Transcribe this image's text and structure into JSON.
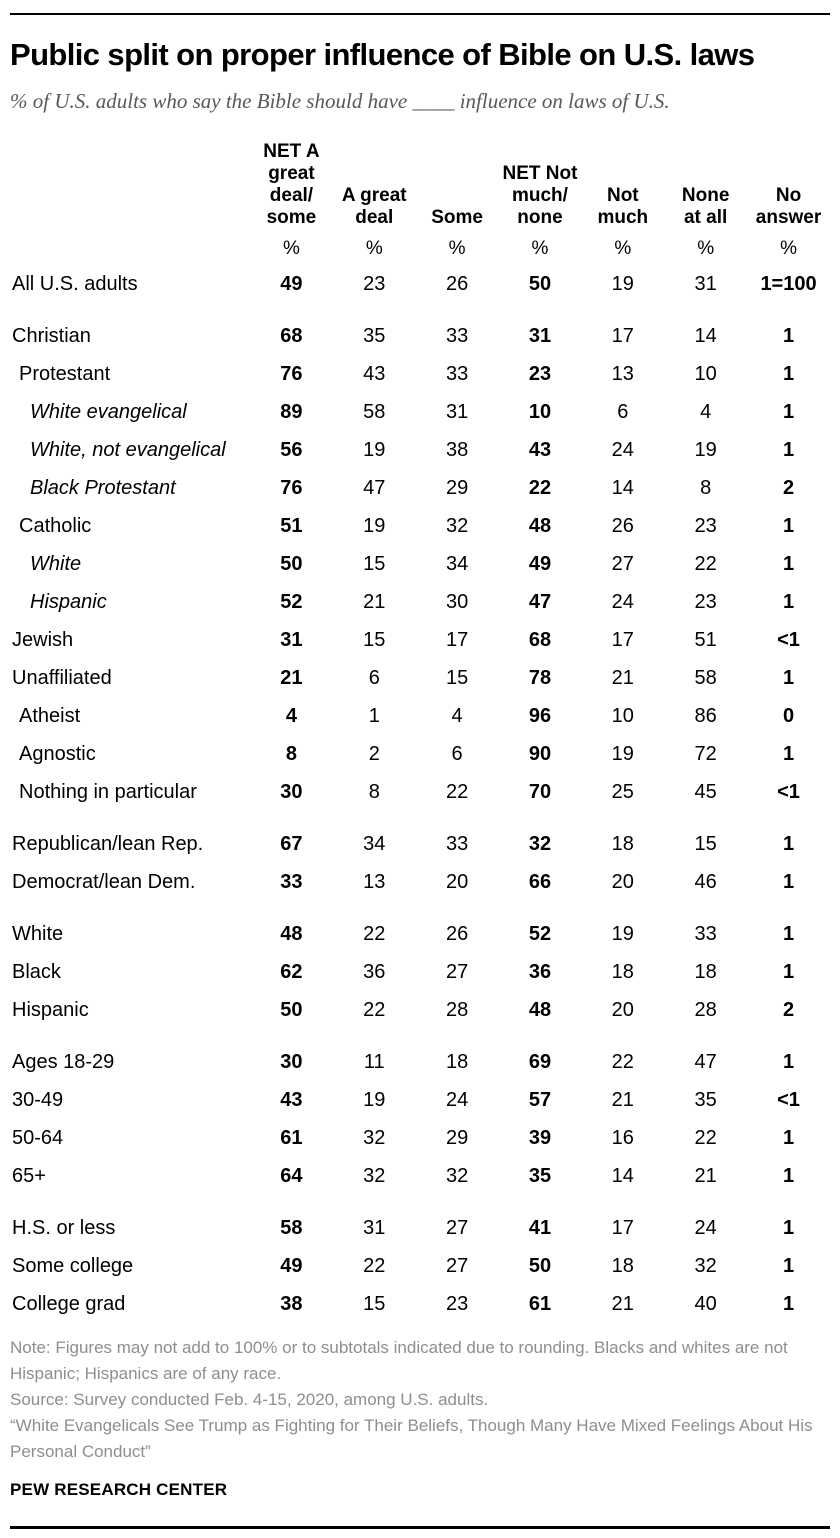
{
  "header": {
    "title": "Public split on proper influence of Bible on U.S. laws",
    "subtitle": "% of U.S. adults who say the Bible should have ____ influence on laws of U.S."
  },
  "chart_data": {
    "type": "table",
    "title": "Public split on proper influence of Bible on U.S. laws",
    "subtitle": "% of U.S. adults who say the Bible should have ____ influence on laws of U.S.",
    "unit": "%",
    "columns": [
      {
        "label": "NET A\ngreat\ndeal/\nsome",
        "bold": true
      },
      {
        "label": "A great\ndeal",
        "bold": false
      },
      {
        "label": "Some",
        "bold": false
      },
      {
        "label": "NET Not\nmuch/\nnone",
        "bold": true
      },
      {
        "label": "Not\nmuch",
        "bold": false
      },
      {
        "label": "None\nat all",
        "bold": false
      },
      {
        "label": "No\nanswer",
        "bold": true
      }
    ],
    "rows": [
      {
        "label": "All U.S. adults",
        "indent": 0,
        "italic": false,
        "group_start": false,
        "values": [
          "49",
          "23",
          "26",
          "50",
          "19",
          "31",
          "1=100"
        ]
      },
      {
        "label": "Christian",
        "indent": 0,
        "italic": false,
        "group_start": true,
        "values": [
          "68",
          "35",
          "33",
          "31",
          "17",
          "14",
          "1"
        ]
      },
      {
        "label": "Protestant",
        "indent": 1,
        "italic": false,
        "group_start": false,
        "values": [
          "76",
          "43",
          "33",
          "23",
          "13",
          "10",
          "1"
        ]
      },
      {
        "label": "White evangelical",
        "indent": 2,
        "italic": true,
        "group_start": false,
        "values": [
          "89",
          "58",
          "31",
          "10",
          "6",
          "4",
          "1"
        ]
      },
      {
        "label": "White, not evangelical",
        "indent": 2,
        "italic": true,
        "group_start": false,
        "values": [
          "56",
          "19",
          "38",
          "43",
          "24",
          "19",
          "1"
        ]
      },
      {
        "label": "Black Protestant",
        "indent": 2,
        "italic": true,
        "group_start": false,
        "values": [
          "76",
          "47",
          "29",
          "22",
          "14",
          "8",
          "2"
        ]
      },
      {
        "label": "Catholic",
        "indent": 1,
        "italic": false,
        "group_start": false,
        "values": [
          "51",
          "19",
          "32",
          "48",
          "26",
          "23",
          "1"
        ]
      },
      {
        "label": "White",
        "indent": 2,
        "italic": true,
        "group_start": false,
        "values": [
          "50",
          "15",
          "34",
          "49",
          "27",
          "22",
          "1"
        ]
      },
      {
        "label": "Hispanic",
        "indent": 2,
        "italic": true,
        "group_start": false,
        "values": [
          "52",
          "21",
          "30",
          "47",
          "24",
          "23",
          "1"
        ]
      },
      {
        "label": "Jewish",
        "indent": 0,
        "italic": false,
        "group_start": false,
        "values": [
          "31",
          "15",
          "17",
          "68",
          "17",
          "51",
          "<1"
        ]
      },
      {
        "label": "Unaffiliated",
        "indent": 0,
        "italic": false,
        "group_start": false,
        "values": [
          "21",
          "6",
          "15",
          "78",
          "21",
          "58",
          "1"
        ]
      },
      {
        "label": "Atheist",
        "indent": 1,
        "italic": false,
        "group_start": false,
        "values": [
          "4",
          "1",
          "4",
          "96",
          "10",
          "86",
          "0"
        ]
      },
      {
        "label": "Agnostic",
        "indent": 1,
        "italic": false,
        "group_start": false,
        "values": [
          "8",
          "2",
          "6",
          "90",
          "19",
          "72",
          "1"
        ]
      },
      {
        "label": "Nothing in particular",
        "indent": 1,
        "italic": false,
        "group_start": false,
        "values": [
          "30",
          "8",
          "22",
          "70",
          "25",
          "45",
          "<1"
        ]
      },
      {
        "label": "Republican/lean Rep.",
        "indent": 0,
        "italic": false,
        "group_start": true,
        "values": [
          "67",
          "34",
          "33",
          "32",
          "18",
          "15",
          "1"
        ]
      },
      {
        "label": "Democrat/lean Dem.",
        "indent": 0,
        "italic": false,
        "group_start": false,
        "values": [
          "33",
          "13",
          "20",
          "66",
          "20",
          "46",
          "1"
        ]
      },
      {
        "label": "White",
        "indent": 0,
        "italic": false,
        "group_start": true,
        "values": [
          "48",
          "22",
          "26",
          "52",
          "19",
          "33",
          "1"
        ]
      },
      {
        "label": "Black",
        "indent": 0,
        "italic": false,
        "group_start": false,
        "values": [
          "62",
          "36",
          "27",
          "36",
          "18",
          "18",
          "1"
        ]
      },
      {
        "label": "Hispanic",
        "indent": 0,
        "italic": false,
        "group_start": false,
        "values": [
          "50",
          "22",
          "28",
          "48",
          "20",
          "28",
          "2"
        ]
      },
      {
        "label": "Ages 18-29",
        "indent": 0,
        "italic": false,
        "group_start": true,
        "values": [
          "30",
          "11",
          "18",
          "69",
          "22",
          "47",
          "1"
        ]
      },
      {
        "label": "30-49",
        "indent": 0,
        "italic": false,
        "group_start": false,
        "values": [
          "43",
          "19",
          "24",
          "57",
          "21",
          "35",
          "<1"
        ]
      },
      {
        "label": "50-64",
        "indent": 0,
        "italic": false,
        "group_start": false,
        "values": [
          "61",
          "32",
          "29",
          "39",
          "16",
          "22",
          "1"
        ]
      },
      {
        "label": "65+",
        "indent": 0,
        "italic": false,
        "group_start": false,
        "values": [
          "64",
          "32",
          "32",
          "35",
          "14",
          "21",
          "1"
        ]
      },
      {
        "label": "H.S. or less",
        "indent": 0,
        "italic": false,
        "group_start": true,
        "values": [
          "58",
          "31",
          "27",
          "41",
          "17",
          "24",
          "1"
        ]
      },
      {
        "label": "Some college",
        "indent": 0,
        "italic": false,
        "group_start": false,
        "values": [
          "49",
          "22",
          "27",
          "50",
          "18",
          "32",
          "1"
        ]
      },
      {
        "label": "College grad",
        "indent": 0,
        "italic": false,
        "group_start": false,
        "values": [
          "38",
          "15",
          "23",
          "61",
          "21",
          "40",
          "1"
        ]
      }
    ]
  },
  "footer": {
    "note": "Note: Figures may not add to 100% or to subtotals indicated due to rounding. Blacks and whites are not Hispanic; Hispanics are of any race.",
    "source": "Source: Survey conducted Feb. 4-15, 2020, among U.S. adults.",
    "report_title": "“White Evangelicals See Trump as Fighting for Their Beliefs, Though Many Have Mixed Feelings About His Personal Conduct”",
    "brand": "PEW RESEARCH CENTER"
  },
  "colors": {
    "text": "#000000",
    "subtitle_gray": "#58585a",
    "note_gray": "#8e8e8e",
    "rule": "#000000",
    "background": "#ffffff"
  }
}
